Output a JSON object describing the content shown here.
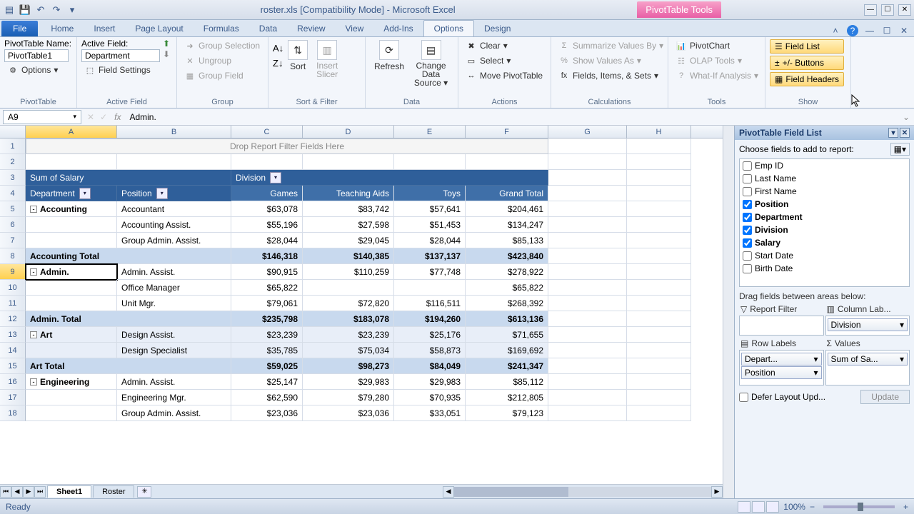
{
  "title": "roster.xls  [Compatibility Mode] - Microsoft Excel",
  "contextual_title": "PivotTable Tools",
  "tabs": [
    "File",
    "Home",
    "Insert",
    "Page Layout",
    "Formulas",
    "Data",
    "Review",
    "View",
    "Add-Ins",
    "Options",
    "Design"
  ],
  "active_tab": "Options",
  "namebox": "A9",
  "formula": "Admin.",
  "ribbon": {
    "pt_name_label": "PivotTable Name:",
    "pt_name": "PivotTable1",
    "options": "Options",
    "g_pivottable": "PivotTable",
    "active_field_label": "Active Field:",
    "active_field": "Department",
    "field_settings": "Field Settings",
    "g_activefield": "Active Field",
    "group_selection": "Group Selection",
    "ungroup": "Ungroup",
    "group_field": "Group Field",
    "g_group": "Group",
    "sort": "Sort",
    "insert_slicer": "Insert Slicer",
    "g_sortfilter": "Sort & Filter",
    "refresh": "Refresh",
    "change_ds": "Change Data Source",
    "g_data": "Data",
    "clear": "Clear",
    "select": "Select",
    "move": "Move PivotTable",
    "g_actions": "Actions",
    "summ": "Summarize Values By",
    "showvals": "Show Values As",
    "fis": "Fields, Items, & Sets",
    "g_calc": "Calculations",
    "pchart": "PivotChart",
    "olap": "OLAP Tools",
    "whatif": "What-If Analysis",
    "g_tools": "Tools",
    "fieldlist": "Field List",
    "pmbtns": "+/- Buttons",
    "fhdrs": "Field Headers",
    "g_show": "Show"
  },
  "columns": [
    "A",
    "B",
    "C",
    "D",
    "E",
    "F",
    "G",
    "H"
  ],
  "dropzone": "Drop Report Filter Fields Here",
  "pivot": {
    "sum_label": "Sum of Salary",
    "division": "Division",
    "dept": "Department",
    "position": "Position",
    "cols": [
      "Games",
      "Teaching Aids",
      "Toys",
      "Grand Total"
    ],
    "rows": [
      {
        "r": 5,
        "dept": "Accounting",
        "pos": "Accountant",
        "v": [
          "$63,078",
          "$83,742",
          "$57,641",
          "$204,461"
        ],
        "expand": "-"
      },
      {
        "r": 6,
        "dept": "",
        "pos": "Accounting Assist.",
        "v": [
          "$55,196",
          "$27,598",
          "$51,453",
          "$134,247"
        ]
      },
      {
        "r": 7,
        "dept": "",
        "pos": "Group Admin. Assist.",
        "v": [
          "$28,044",
          "$29,045",
          "$28,044",
          "$85,133"
        ]
      },
      {
        "r": 8,
        "total": "Accounting Total",
        "v": [
          "$146,318",
          "$140,385",
          "$137,137",
          "$423,840"
        ]
      },
      {
        "r": 9,
        "dept": "Admin.",
        "pos": "Admin. Assist.",
        "v": [
          "$90,915",
          "$110,259",
          "$77,748",
          "$278,922"
        ],
        "expand": "-",
        "active": true
      },
      {
        "r": 10,
        "dept": "",
        "pos": "Office Manager",
        "v": [
          "$65,822",
          "",
          "",
          "$65,822"
        ]
      },
      {
        "r": 11,
        "dept": "",
        "pos": "Unit Mgr.",
        "v": [
          "$79,061",
          "$72,820",
          "$116,511",
          "$268,392"
        ]
      },
      {
        "r": 12,
        "total": "Admin. Total",
        "v": [
          "$235,798",
          "$183,078",
          "$194,260",
          "$613,136"
        ]
      },
      {
        "r": 13,
        "dept": "Art",
        "pos": "Design Assist.",
        "v": [
          "$23,239",
          "$23,239",
          "$25,176",
          "$71,655"
        ],
        "expand": "-",
        "hl": true
      },
      {
        "r": 14,
        "dept": "",
        "pos": "Design Specialist",
        "v": [
          "$35,785",
          "$75,034",
          "$58,873",
          "$169,692"
        ],
        "hl": true
      },
      {
        "r": 15,
        "total": "Art Total",
        "v": [
          "$59,025",
          "$98,273",
          "$84,049",
          "$241,347"
        ]
      },
      {
        "r": 16,
        "dept": "Engineering",
        "pos": "Admin. Assist.",
        "v": [
          "$25,147",
          "$29,983",
          "$29,983",
          "$85,112"
        ],
        "expand": "-"
      },
      {
        "r": 17,
        "dept": "",
        "pos": "Engineering Mgr.",
        "v": [
          "$62,590",
          "$79,280",
          "$70,935",
          "$212,805"
        ]
      },
      {
        "r": 18,
        "dept": "",
        "pos": "Group Admin. Assist.",
        "v": [
          "$23,036",
          "$23,036",
          "$33,051",
          "$79,123"
        ]
      }
    ]
  },
  "fieldlist": {
    "title": "PivotTable Field List",
    "hint": "Choose fields to add to report:",
    "fields": [
      {
        "name": "Emp ID",
        "checked": false
      },
      {
        "name": "Last Name",
        "checked": false
      },
      {
        "name": "First Name",
        "checked": false
      },
      {
        "name": "Position",
        "checked": true
      },
      {
        "name": "Department",
        "checked": true
      },
      {
        "name": "Division",
        "checked": true
      },
      {
        "name": "Salary",
        "checked": true
      },
      {
        "name": "Start Date",
        "checked": false
      },
      {
        "name": "Birth Date",
        "checked": false
      }
    ],
    "draghint": "Drag fields between areas below:",
    "area_rfilter": "Report Filter",
    "area_collab": "Column Lab...",
    "area_rowlab": "Row Labels",
    "area_values": "Values",
    "col_pill": "Division",
    "row_pill1": "Depart...",
    "row_pill2": "Position",
    "val_pill": "Sum of Sa...",
    "defer": "Defer Layout Upd...",
    "update": "Update"
  },
  "sheets": [
    "Sheet1",
    "Roster"
  ],
  "status": {
    "ready": "Ready",
    "zoom": "100%"
  }
}
